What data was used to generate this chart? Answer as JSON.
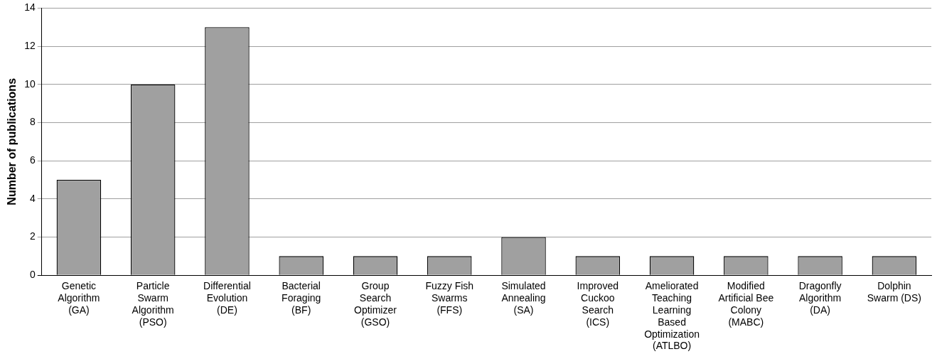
{
  "chart_data": {
    "type": "bar",
    "ylabel": "Number of publications",
    "categories": [
      "Genetic\nAlgorithm\n(GA)",
      "Particle\nSwarm\nAlgorithm\n(PSO)",
      "Differential\nEvolution\n(DE)",
      "Bacterial\nForaging\n(BF)",
      "Group\nSearch\nOptimizer\n(GSO)",
      "Fuzzy Fish\nSwarms\n(FFS)",
      "Simulated\nAnnealing\n(SA)",
      "Improved\nCuckoo\nSearch\n(ICS)",
      "Ameliorated\nTeaching\nLearning\nBased\nOptimization\n(ATLBO)",
      "Modified\nArtificial Bee\nColony\n(MABC)",
      "Dragonfly\nAlgorithm\n(DA)",
      "Dolphin\nSwarm (DS)"
    ],
    "values": [
      5,
      10,
      13,
      1,
      1,
      1,
      2,
      1,
      1,
      1,
      1,
      1
    ],
    "color": "#a0a0a0",
    "ylim": [
      0,
      14
    ],
    "yticks": [
      0,
      2,
      4,
      6,
      8,
      10,
      12,
      14
    ],
    "grid": "y",
    "legend": false
  }
}
